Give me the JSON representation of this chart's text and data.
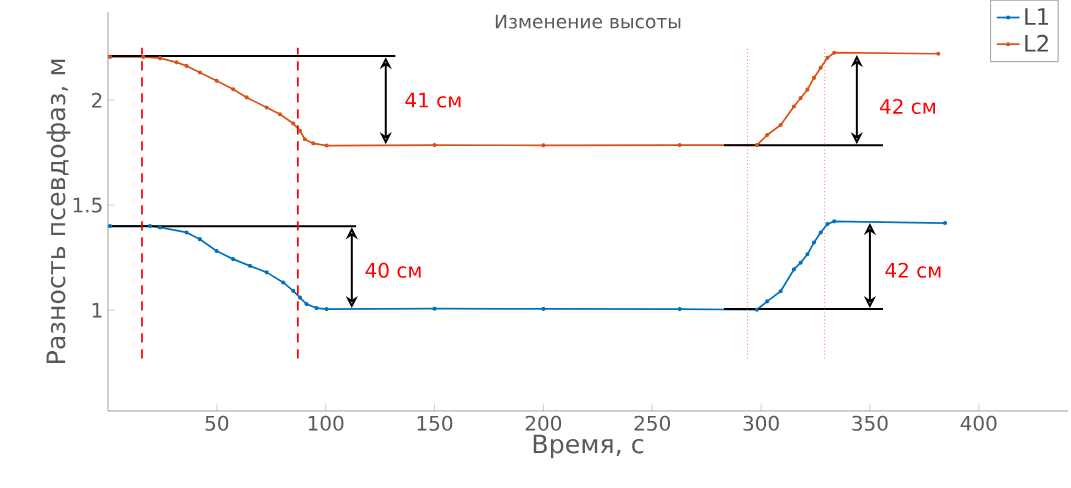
{
  "chart_data": {
    "type": "line",
    "title": "Изменение высоты",
    "xlabel": "Время, с",
    "ylabel": "Разность псевдофаз, м",
    "xlim": [
      0,
      441
    ],
    "ylim": [
      0.52,
      2.42
    ],
    "xticks": [
      50,
      100,
      150,
      200,
      250,
      300,
      350,
      400
    ],
    "yticks": [
      1,
      1.5,
      2
    ],
    "legend": "top right",
    "marker": "circle",
    "grid": false,
    "series": [
      {
        "name": "L1",
        "color": "#0072bd",
        "x": [
          0.9,
          19.3,
          23.9,
          36.1,
          42.2,
          49.9,
          57.5,
          65.2,
          72.9,
          80.5,
          85.1,
          88.2,
          91.2,
          95.8,
          100.4,
          150,
          200,
          262.6,
          298.1,
          302.8,
          309.0,
          315.1,
          318.2,
          321.3,
          324.3,
          327.4,
          330.5,
          333.6,
          384.5
        ],
        "values": [
          1.401,
          1.401,
          1.394,
          1.37,
          1.338,
          1.282,
          1.243,
          1.211,
          1.18,
          1.132,
          1.092,
          1.06,
          1.029,
          1.01,
          1.005,
          1.007,
          1.006,
          1.005,
          1.002,
          1.042,
          1.09,
          1.194,
          1.226,
          1.266,
          1.322,
          1.37,
          1.41,
          1.423,
          1.415
        ]
      },
      {
        "name": "L2",
        "color": "#d95319",
        "x": [
          0.9,
          16.2,
          23.9,
          31.5,
          36.1,
          42.2,
          49.9,
          57.5,
          63.7,
          72.9,
          79.0,
          85.1,
          88.2,
          90.4,
          94.3,
          100.4,
          150,
          200,
          262.6,
          298.1,
          302.8,
          309.0,
          315.1,
          318.2,
          321.3,
          324.3,
          327.4,
          330.5,
          333.6,
          381.4
        ],
        "values": [
          2.206,
          2.206,
          2.2,
          2.18,
          2.163,
          2.132,
          2.092,
          2.052,
          2.013,
          1.965,
          1.933,
          1.889,
          1.854,
          1.814,
          1.794,
          1.784,
          1.786,
          1.785,
          1.786,
          1.786,
          1.834,
          1.882,
          1.97,
          2.01,
          2.05,
          2.106,
          2.154,
          2.202,
          2.226,
          2.221
        ]
      },
      {
        "type": "line",
        "color": "#000000",
        "marker": "none",
        "x": [
          0,
          132
        ],
        "values": [
          2.21,
          2.21
        ]
      },
      {
        "type": "line",
        "color": "#000000",
        "marker": "none",
        "x": [
          0,
          114
        ],
        "values": [
          1.4,
          1.4
        ]
      },
      {
        "type": "line",
        "color": "#000000",
        "marker": "none",
        "x": [
          283,
          356
        ],
        "values": [
          1.785,
          1.785
        ]
      },
      {
        "type": "line",
        "color": "#000000",
        "marker": "none",
        "x": [
          283,
          356
        ],
        "values": [
          1.005,
          1.005
        ]
      }
    ],
    "ref_lines": [
      {
        "axis": "x",
        "value": 15.6,
        "color": "#ff0000",
        "line_style": "dashed"
      },
      {
        "axis": "x",
        "value": 87.2,
        "color": "#ff0000",
        "line_style": "dashed"
      },
      {
        "axis": "x",
        "value": 293.8,
        "color": "#ff3030",
        "line_style": "dotted"
      },
      {
        "axis": "x",
        "value": 329.2,
        "color": "#ff3030",
        "line_style": "dotted"
      }
    ],
    "annotations": [
      "41 см",
      "40 см",
      "42 см",
      "42 см"
    ]
  }
}
